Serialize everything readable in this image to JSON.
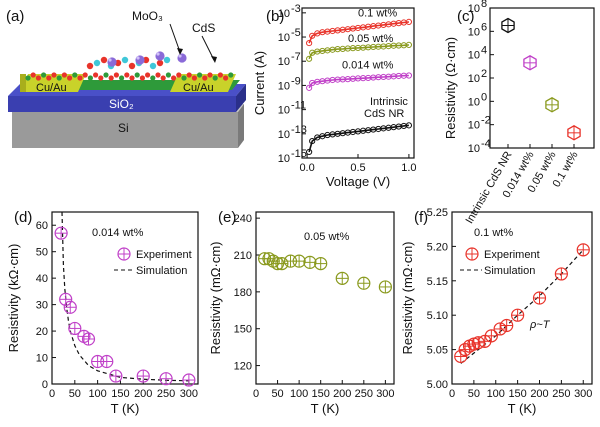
{
  "panels": {
    "a": {
      "label": "(a)",
      "labels": {
        "moo3": "MoO₃",
        "cds": "CdS",
        "electrode_left": "Cu/Au",
        "electrode_right": "Cu/Au",
        "sio2": "SiO₂",
        "si": "Si"
      }
    }
  },
  "colors": {
    "black": "#111111",
    "magenta": "#c040c8",
    "olive": "#8a9a1e",
    "red": "#e8332a",
    "cu_yellow": "#c9d22a",
    "substrate_blue": "#3a3fb0",
    "si_gray": "#9a9a9a"
  },
  "chart_data": [
    {
      "id": "b",
      "panel_label": "(b)",
      "type": "line",
      "xlabel": "Voltage (V)",
      "ylabel": "Current (A)",
      "xlim": [
        -0.05,
        1.05
      ],
      "ylim_log10": [
        -15,
        -2.6
      ],
      "y_scale": "log",
      "x_ticks": [
        "0.0",
        "0.5",
        "1.0"
      ],
      "y_ticks": [
        "10",
        "10",
        "10",
        "10",
        "10",
        "10",
        "10"
      ],
      "y_tick_exponents": [
        "-3",
        "-5",
        "-7",
        "-9",
        "-11",
        "-13",
        "-15"
      ],
      "y_tick_values_log10": [
        -3,
        -5,
        -7,
        -9,
        -11,
        -13,
        -15
      ],
      "x_tick_values": [
        0.0,
        0.5,
        1.0
      ],
      "series": [
        {
          "name": "0.1 wt%",
          "color": "#e8332a",
          "x": [
            0.02,
            0.05,
            0.1,
            0.15,
            0.2,
            0.25,
            0.3,
            0.35,
            0.4,
            0.45,
            0.5,
            0.55,
            0.6,
            0.65,
            0.7,
            0.75,
            0.8,
            0.85,
            0.9,
            0.95,
            1.0
          ],
          "log10_current": [
            -5.5,
            -4.9,
            -4.7,
            -4.6,
            -4.55,
            -4.5,
            -4.45,
            -4.4,
            -4.35,
            -4.3,
            -4.25,
            -4.2,
            -4.15,
            -4.1,
            -4.05,
            -4.0,
            -3.95,
            -3.9,
            -3.85,
            -3.8,
            -3.75
          ]
        },
        {
          "name": "0.05 wt%",
          "color": "#8a9a1e",
          "x": [
            0.02,
            0.05,
            0.1,
            0.15,
            0.2,
            0.25,
            0.3,
            0.35,
            0.4,
            0.45,
            0.5,
            0.55,
            0.6,
            0.65,
            0.7,
            0.75,
            0.8,
            0.85,
            0.9,
            0.95,
            1.0
          ],
          "log10_current": [
            -6.8,
            -6.3,
            -6.2,
            -6.15,
            -6.1,
            -6.05,
            -6.0,
            -5.98,
            -5.95,
            -5.92,
            -5.9,
            -5.88,
            -5.85,
            -5.82,
            -5.8,
            -5.78,
            -5.75,
            -5.72,
            -5.7,
            -5.68,
            -5.65
          ]
        },
        {
          "name": "0.014 wt%",
          "color": "#c040c8",
          "x": [
            0.02,
            0.05,
            0.1,
            0.15,
            0.2,
            0.25,
            0.3,
            0.35,
            0.4,
            0.45,
            0.5,
            0.55,
            0.6,
            0.65,
            0.7,
            0.75,
            0.8,
            0.85,
            0.9,
            0.95,
            1.0
          ],
          "log10_current": [
            -9.2,
            -8.8,
            -8.7,
            -8.65,
            -8.6,
            -8.55,
            -8.52,
            -8.5,
            -8.48,
            -8.45,
            -8.42,
            -8.4,
            -8.38,
            -8.35,
            -8.32,
            -8.3,
            -8.28,
            -8.25,
            -8.22,
            -8.2,
            -8.18
          ]
        },
        {
          "name": "Intrinsic CdS NR",
          "color": "#111111",
          "x": [
            0.02,
            0.05,
            0.1,
            0.15,
            0.2,
            0.25,
            0.3,
            0.35,
            0.4,
            0.45,
            0.5,
            0.55,
            0.6,
            0.65,
            0.7,
            0.75,
            0.8,
            0.85,
            0.9,
            0.95,
            1.0
          ],
          "log10_current": [
            -14.5,
            -13.6,
            -13.3,
            -13.2,
            -13.1,
            -13.05,
            -13.0,
            -12.95,
            -12.9,
            -12.85,
            -12.8,
            -12.75,
            -12.7,
            -12.65,
            -12.6,
            -12.55,
            -12.5,
            -12.45,
            -12.4,
            -12.35,
            -12.3
          ]
        }
      ],
      "annotations": [
        "0.1 wt%",
        "0.05 wt%",
        "0.014 wt%",
        "Intrinsic",
        "CdS NR"
      ]
    },
    {
      "id": "c",
      "panel_label": "(c)",
      "type": "scatter",
      "ylabel": "Resistivity (Ω·cm)",
      "y_scale": "log",
      "ylim_log10": [
        -4,
        8
      ],
      "y_ticks": [
        "10",
        "10",
        "10",
        "10",
        "10",
        "10",
        "10"
      ],
      "y_tick_exponents": [
        "8",
        "6",
        "4",
        "2",
        "0",
        "-2",
        "-4"
      ],
      "y_tick_values_log10": [
        8,
        6,
        4,
        2,
        0,
        -2,
        -4
      ],
      "categories": [
        "Intrinsic CdS NR",
        "0.014 wt%",
        "0.05 wt%",
        "0.1 wt%"
      ],
      "log10_values": [
        6.5,
        3.3,
        -0.3,
        -2.7
      ],
      "colors": [
        "#111111",
        "#c040c8",
        "#8a9a1e",
        "#e8332a"
      ]
    },
    {
      "id": "d",
      "panel_label": "(d)",
      "type": "scatter",
      "xlabel": "T (K)",
      "ylabel": "Resistivity (kΩ·cm)",
      "xlim": [
        0,
        320
      ],
      "ylim": [
        0,
        65
      ],
      "x_ticks": [
        0,
        50,
        100,
        150,
        200,
        250,
        300
      ],
      "y_ticks": [
        0,
        10,
        20,
        30,
        40,
        50,
        60
      ],
      "annotation": "0.014 wt%",
      "legend": [
        "Experiment",
        "Simulation"
      ],
      "series": [
        {
          "name": "Experiment",
          "color": "#c040c8",
          "x": [
            20,
            30,
            40,
            50,
            70,
            80,
            100,
            120,
            140,
            200,
            250,
            300
          ],
          "y": [
            57,
            32,
            29,
            21,
            18,
            17,
            8.5,
            8.5,
            3,
            3,
            2,
            1.5
          ]
        },
        {
          "name": "Simulation",
          "color": "#111111",
          "x": [
            22,
            25,
            28,
            32,
            36,
            40,
            50,
            60,
            80,
            100,
            150,
            200,
            250,
            300
          ],
          "y": [
            65,
            45,
            36,
            29,
            24,
            20,
            14.5,
            11,
            7,
            5,
            2.5,
            1.8,
            1.4,
            1.2
          ]
        }
      ]
    },
    {
      "id": "e",
      "panel_label": "(e)",
      "type": "scatter",
      "xlabel": "T (K)",
      "ylabel": "Resistivity (mΩ·cm)",
      "xlim": [
        0,
        320
      ],
      "ylim": [
        105,
        245
      ],
      "x_ticks": [
        0,
        50,
        100,
        150,
        200,
        250,
        300
      ],
      "y_ticks": [
        120,
        150,
        180,
        210,
        240
      ],
      "annotation": "0.05 wt%",
      "series": [
        {
          "name": "",
          "color": "#8a9a1e",
          "x": [
            20,
            30,
            40,
            50,
            60,
            80,
            100,
            125,
            150,
            200,
            250,
            300
          ],
          "y": [
            207,
            207,
            205,
            203,
            203,
            205,
            205,
            204,
            203,
            191,
            187,
            184
          ]
        }
      ]
    },
    {
      "id": "f",
      "panel_label": "(f)",
      "type": "scatter",
      "xlabel": "T (K)",
      "ylabel": "Resistivity (mΩ·cm)",
      "xlim": [
        0,
        320
      ],
      "ylim": [
        5.0,
        5.25
      ],
      "x_ticks": [
        0,
        50,
        100,
        150,
        200,
        250,
        300
      ],
      "y_ticks": [
        "5.00",
        "5.05",
        "5.10",
        "5.15",
        "5.20",
        "5.25"
      ],
      "y_tick_values": [
        5.0,
        5.05,
        5.1,
        5.15,
        5.2,
        5.25
      ],
      "annotation": "0.1 wt%",
      "legend": [
        "Experiment",
        "Simulation"
      ],
      "trend_label": "ρ~T",
      "series": [
        {
          "name": "Experiment",
          "color": "#e8332a",
          "x": [
            20,
            30,
            40,
            50,
            60,
            75,
            90,
            110,
            125,
            150,
            200,
            250,
            300
          ],
          "y": [
            5.04,
            5.05,
            5.055,
            5.058,
            5.06,
            5.062,
            5.07,
            5.08,
            5.085,
            5.1,
            5.125,
            5.16,
            5.195
          ]
        },
        {
          "name": "Simulation",
          "color": "#111111",
          "x": [
            20,
            60,
            100,
            150,
            200,
            250,
            300
          ],
          "y": [
            5.03,
            5.05,
            5.07,
            5.1,
            5.128,
            5.16,
            5.195
          ]
        }
      ]
    }
  ]
}
